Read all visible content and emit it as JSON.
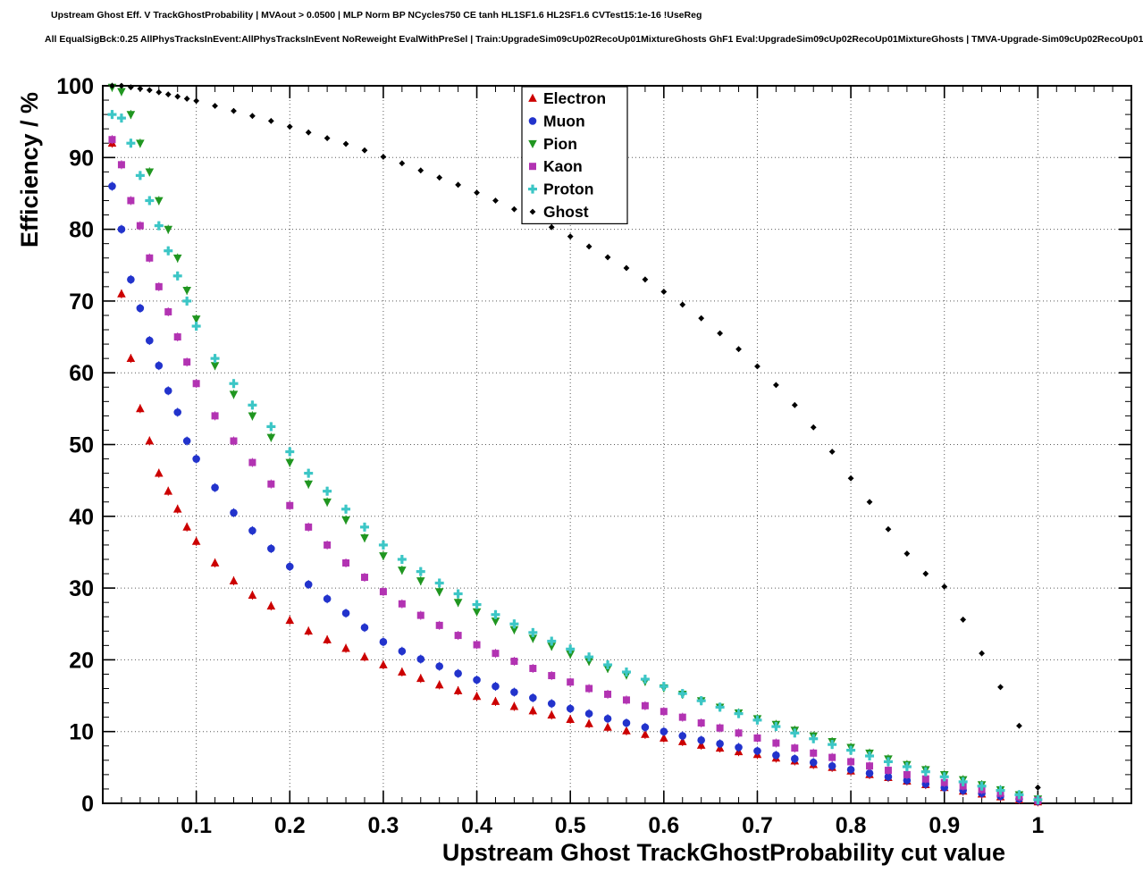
{
  "chart_data": {
    "type": "scatter",
    "title": "Upstream Ghost Eff. V TrackGhostProbability | MVAout > 0.0500 | MLP Norm BP NCycles750 CE tanh HL1SF1.6 HL2SF1.6 CVTest15:1e-16 !UseReg",
    "subtitle": "All EqualSigBck:0.25 AllPhysTracksInEvent:AllPhysTracksInEvent NoReweight EvalWithPreSel | Train:UpgradeSim09cUp02RecoUp01MixtureGhosts GhF1 Eval:UpgradeSim09cUp02RecoUp01MixtureGhosts | TMVA-Upgrade-Sim09cUp02RecoUp01",
    "xlabel": "Upstream Ghost TrackGhostProbability cut value",
    "ylabel": "Efficiency / %",
    "xlim": [
      0,
      1.1
    ],
    "ylim": [
      0,
      100
    ],
    "grid": true,
    "legend_position": "top-center",
    "x_tick_values": [
      0.1,
      0.2,
      0.3,
      0.4,
      0.5,
      0.6,
      0.7,
      0.8,
      0.9,
      1.0
    ],
    "x_tick_labels": [
      "0.1",
      "0.2",
      "0.3",
      "0.4",
      "0.5",
      "0.6",
      "0.7",
      "0.8",
      "0.9",
      "1"
    ],
    "x_minor_step": 0.02,
    "y_tick_values": [
      0,
      10,
      20,
      30,
      40,
      50,
      60,
      70,
      80,
      90,
      100
    ],
    "y_tick_labels": [
      "0",
      "10",
      "20",
      "30",
      "40",
      "50",
      "60",
      "70",
      "80",
      "90",
      "100"
    ],
    "y_minor_step": 2,
    "x": [
      0.01,
      0.02,
      0.03,
      0.04,
      0.05,
      0.06,
      0.07,
      0.08,
      0.09,
      0.1,
      0.12,
      0.14,
      0.16,
      0.18,
      0.2,
      0.22,
      0.24,
      0.26,
      0.28,
      0.3,
      0.32,
      0.34,
      0.36,
      0.38,
      0.4,
      0.42,
      0.44,
      0.46,
      0.48,
      0.5,
      0.52,
      0.54,
      0.56,
      0.58,
      0.6,
      0.62,
      0.64,
      0.66,
      0.68,
      0.7,
      0.72,
      0.74,
      0.76,
      0.78,
      0.8,
      0.82,
      0.84,
      0.86,
      0.88,
      0.9,
      0.92,
      0.94,
      0.96,
      0.98,
      1.0
    ],
    "series": [
      {
        "name": "Electron",
        "marker": "triangle-up",
        "color": "#cc0000",
        "values": [
          92.0,
          71.0,
          62.0,
          55.0,
          50.5,
          46.0,
          43.5,
          41.0,
          38.5,
          36.5,
          33.5,
          31.0,
          29.0,
          27.5,
          25.5,
          24.0,
          22.8,
          21.6,
          20.4,
          19.3,
          18.3,
          17.4,
          16.5,
          15.7,
          14.9,
          14.2,
          13.5,
          12.9,
          12.3,
          11.7,
          11.1,
          10.6,
          10.1,
          9.6,
          9.1,
          8.6,
          8.1,
          7.7,
          7.2,
          6.8,
          6.3,
          5.9,
          5.4,
          5.0,
          4.5,
          4.0,
          3.6,
          3.1,
          2.6,
          2.2,
          1.7,
          1.3,
          0.9,
          0.5,
          0.2
        ]
      },
      {
        "name": "Muon",
        "marker": "circle",
        "color": "#2233cc",
        "values": [
          86.0,
          80.0,
          73.0,
          69.0,
          64.5,
          61.0,
          57.5,
          54.5,
          50.5,
          48.0,
          44.0,
          40.5,
          38.0,
          35.5,
          33.0,
          30.5,
          28.5,
          26.5,
          24.5,
          22.5,
          21.2,
          20.1,
          19.1,
          18.1,
          17.2,
          16.3,
          15.5,
          14.7,
          13.9,
          13.2,
          12.5,
          11.8,
          11.2,
          10.6,
          10.0,
          9.4,
          8.8,
          8.3,
          7.8,
          7.3,
          6.7,
          6.2,
          5.7,
          5.2,
          4.7,
          4.2,
          3.7,
          3.2,
          2.7,
          2.2,
          1.8,
          1.4,
          1.0,
          0.6,
          0.3
        ]
      },
      {
        "name": "Pion",
        "marker": "triangle-down",
        "color": "#209620",
        "values": [
          99.8,
          99.2,
          96.0,
          92.0,
          88.0,
          84.0,
          80.0,
          76.0,
          71.5,
          67.5,
          61.0,
          57.0,
          54.0,
          51.0,
          47.5,
          44.5,
          42.0,
          39.5,
          37.0,
          34.5,
          32.5,
          31.0,
          29.5,
          28.0,
          26.7,
          25.4,
          24.2,
          23.0,
          21.9,
          20.8,
          19.8,
          18.8,
          17.9,
          17.0,
          16.1,
          15.2,
          14.3,
          13.4,
          12.6,
          11.8,
          11.0,
          10.2,
          9.4,
          8.6,
          7.8,
          7.0,
          6.2,
          5.4,
          4.7,
          4.0,
          3.3,
          2.6,
          1.9,
          1.2,
          0.6
        ]
      },
      {
        "name": "Kaon",
        "marker": "square",
        "color": "#b233b2",
        "values": [
          92.5,
          89.0,
          84.0,
          80.5,
          76.0,
          72.0,
          68.5,
          65.0,
          61.5,
          58.5,
          54.0,
          50.5,
          47.5,
          44.5,
          41.5,
          38.5,
          36.0,
          33.5,
          31.5,
          29.5,
          27.8,
          26.2,
          24.8,
          23.4,
          22.1,
          20.9,
          19.8,
          18.8,
          17.8,
          16.9,
          16.0,
          15.2,
          14.4,
          13.6,
          12.8,
          12.0,
          11.2,
          10.5,
          9.8,
          9.1,
          8.4,
          7.7,
          7.0,
          6.4,
          5.8,
          5.2,
          4.6,
          4.0,
          3.4,
          2.9,
          2.4,
          1.9,
          1.4,
          0.9,
          0.4
        ]
      },
      {
        "name": "Proton",
        "marker": "plus",
        "color": "#3cc6c6",
        "values": [
          96.0,
          95.5,
          92.0,
          87.5,
          84.0,
          80.5,
          77.0,
          73.5,
          70.0,
          66.5,
          62.0,
          58.5,
          55.5,
          52.5,
          49.0,
          46.0,
          43.5,
          41.0,
          38.5,
          36.0,
          34.0,
          32.3,
          30.7,
          29.2,
          27.7,
          26.3,
          25.0,
          23.8,
          22.6,
          21.5,
          20.4,
          19.3,
          18.3,
          17.3,
          16.3,
          15.3,
          14.3,
          13.4,
          12.5,
          11.6,
          10.7,
          9.8,
          9.0,
          8.2,
          7.4,
          6.6,
          5.8,
          5.1,
          4.4,
          3.7,
          3.0,
          2.4,
          1.8,
          1.2,
          0.5
        ]
      },
      {
        "name": "Ghost",
        "marker": "diamond",
        "color": "#000000",
        "values": [
          100.0,
          100.0,
          99.8,
          99.6,
          99.4,
          99.1,
          98.8,
          98.5,
          98.2,
          97.9,
          97.2,
          96.5,
          95.8,
          95.1,
          94.3,
          93.5,
          92.7,
          91.9,
          91.0,
          90.1,
          89.2,
          88.2,
          87.2,
          86.2,
          85.1,
          84.0,
          82.8,
          81.6,
          80.3,
          79.0,
          77.6,
          76.1,
          74.6,
          73.0,
          71.3,
          69.5,
          67.6,
          65.5,
          63.3,
          60.9,
          58.3,
          55.5,
          52.4,
          49.0,
          45.3,
          42.0,
          38.2,
          34.8,
          32.0,
          30.2,
          25.6,
          20.9,
          16.2,
          10.8,
          2.2
        ]
      }
    ]
  }
}
